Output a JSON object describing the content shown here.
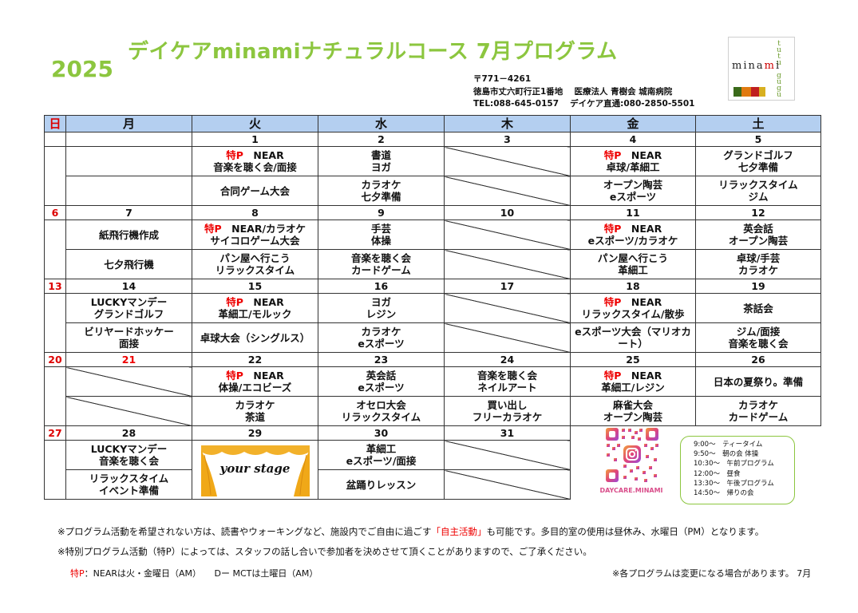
{
  "header": {
    "year": "2025",
    "title": "デイケアminamiナチュラルコース 7月プログラム",
    "postal": "〒771－4261",
    "address": "徳島市丈六町行正1番地　 医療法人 青樹会 城南病院",
    "tel": "TEL:088-645-0157　 デイケア直通:080-2850-5501"
  },
  "logo": {
    "vertical_top": [
      "t",
      "u",
      "t",
      "u"
    ],
    "word_a": "mina",
    "word_b": "m",
    "word_c": "i",
    "vertical_bottom": [
      "g",
      "u",
      "g",
      "u"
    ],
    "colors": [
      "#3a6a1a",
      "#e07a10",
      "#c02020",
      "#d8b020"
    ]
  },
  "weekdays": [
    "日",
    "月",
    "火",
    "水",
    "木",
    "金",
    "土"
  ],
  "weeks": [
    {
      "dates": [
        "",
        "",
        "1",
        "2",
        "3",
        "4",
        "5"
      ],
      "rows": [
        [
          {
            "sp": "",
            "t": [
              "",
              ""
            ]
          },
          {
            "sp": "特P",
            "t": [
              "　NEAR",
              "音楽を聴く会/面接"
            ]
          },
          {
            "sp": "",
            "t": [
              "書道",
              "ヨガ"
            ]
          },
          {
            "slash": true
          },
          {
            "sp": "特P",
            "t": [
              "　NEAR",
              "卓球/革細工"
            ]
          },
          {
            "sp": "",
            "t": [
              "グランドゴルフ",
              "七夕準備"
            ]
          }
        ],
        [
          {
            "sp": "",
            "t": [
              "",
              ""
            ]
          },
          {
            "sp": "",
            "t": [
              "合同ゲーム大会",
              ""
            ]
          },
          {
            "sp": "",
            "t": [
              "カラオケ",
              "七夕準備"
            ]
          },
          {
            "slash": true
          },
          {
            "sp": "",
            "t": [
              "オープン陶芸",
              "eスポーツ"
            ]
          },
          {
            "sp": "",
            "t": [
              "リラックスタイム",
              "ジム"
            ]
          }
        ]
      ]
    },
    {
      "dates": [
        "6",
        "7",
        "8",
        "9",
        "10",
        "11",
        "12"
      ],
      "rows": [
        [
          {
            "sp": "",
            "t": [
              "紙飛行機作成",
              ""
            ]
          },
          {
            "sp": "特P",
            "t": [
              "　NEAR/カラオケ",
              "サイコロゲーム大会"
            ]
          },
          {
            "sp": "",
            "t": [
              "手芸",
              "体操"
            ]
          },
          {
            "slash": true
          },
          {
            "sp": "特P",
            "t": [
              "　NEAR",
              "eスポーツ/カラオケ"
            ]
          },
          {
            "sp": "",
            "t": [
              "英会話",
              "オープン陶芸"
            ]
          }
        ],
        [
          {
            "sp": "",
            "t": [
              "七夕飛行機",
              ""
            ]
          },
          {
            "sp": "",
            "t": [
              "パン屋へ行こう",
              "リラックスタイム"
            ]
          },
          {
            "sp": "",
            "t": [
              "音楽を聴く会",
              "カードゲーム"
            ]
          },
          {
            "slash": true
          },
          {
            "sp": "",
            "t": [
              "パン屋へ行こう",
              "革細工"
            ]
          },
          {
            "sp": "",
            "t": [
              "卓球/手芸",
              "カラオケ"
            ]
          }
        ]
      ]
    },
    {
      "dates": [
        "13",
        "14",
        "15",
        "16",
        "17",
        "18",
        "19"
      ],
      "rows": [
        [
          {
            "sp": "",
            "t": [
              "LUCKYマンデー",
              "グランドゴルフ"
            ]
          },
          {
            "sp": "特P",
            "t": [
              "　NEAR",
              "革細工/モルック"
            ]
          },
          {
            "sp": "",
            "t": [
              "ヨガ",
              "レジン"
            ]
          },
          {
            "slash": true
          },
          {
            "sp": "特P",
            "t": [
              "　NEAR",
              "リラックスタイム/散歩"
            ]
          },
          {
            "sp": "",
            "t": [
              "茶話会",
              ""
            ]
          }
        ],
        [
          {
            "sp": "",
            "t": [
              "ビリヤードホッケー",
              "面接"
            ]
          },
          {
            "sp": "",
            "t": [
              "卓球大会（シングルス）",
              ""
            ]
          },
          {
            "sp": "",
            "t": [
              "カラオケ",
              "eスポーツ"
            ]
          },
          {
            "slash": true
          },
          {
            "sp": "",
            "small": true,
            "t": [
              "eスポーツ大会（マリオカート）",
              ""
            ]
          },
          {
            "sp": "",
            "t": [
              "ジム/面接",
              "音楽を聴く会"
            ]
          }
        ]
      ]
    },
    {
      "dates": [
        "20",
        "21",
        "22",
        "23",
        "24",
        "25",
        "26"
      ],
      "rows": [
        [
          {
            "slash": true
          },
          {
            "sp": "特P",
            "t": [
              "　NEAR",
              "体操/エコビーズ"
            ]
          },
          {
            "sp": "",
            "t": [
              "英会話",
              "eスポーツ"
            ]
          },
          {
            "sp": "",
            "t": [
              "音楽を聴く会",
              "ネイルアート"
            ]
          },
          {
            "sp": "特P",
            "t": [
              "　NEAR",
              "革細工/レジン"
            ]
          },
          {
            "sp": "",
            "t": [
              "日本の夏祭り。準備",
              ""
            ]
          }
        ],
        [
          {
            "slash": true
          },
          {
            "sp": "",
            "t": [
              "カラオケ",
              "茶道"
            ]
          },
          {
            "sp": "",
            "t": [
              "オセロ大会",
              "リラックスタイム"
            ]
          },
          {
            "sp": "",
            "t": [
              "買い出し",
              "フリーカラオケ"
            ]
          },
          {
            "sp": "",
            "t": [
              "麻雀大会",
              "オープン陶芸"
            ]
          },
          {
            "sp": "",
            "t": [
              "カラオケ",
              "カードゲーム"
            ]
          }
        ]
      ]
    }
  ],
  "last_week": {
    "dates": [
      "27",
      "28",
      "29",
      "30",
      "31"
    ],
    "mon": [
      [
        "LUCKYマンデー",
        "音楽を聴く会"
      ],
      [
        "リラックスタイム",
        "イベント準備"
      ]
    ],
    "tue_stage": "your stage",
    "wed": [
      [
        "革細工",
        "eスポーツ/面接"
      ],
      [
        "盆踊りレッスン",
        ""
      ]
    ],
    "qr_label": "DAYCARE.MINAMI"
  },
  "schedule": [
    "9:00～　ティータイム",
    "9:50～　朝の会 体操",
    "10:30～　午前プログラム",
    "12:00～　昼食",
    "13:30～　午後プログラム",
    "14:50～　帰りの会"
  ],
  "notes": {
    "line1_a": "※プログラム活動を希望されない方は、読書やウォーキングなど、施設内でご自由に過ごす",
    "line1_hi": "「自主活動」",
    "line1_b": "も可能です。多目的室の使用は昼休み、水曜日（PM）となります。",
    "line2": "※特別プログラム活動（特P）によっては、スタッフの話し合いで参加者を決めさせて頂くことがありますので、ご了承ください。",
    "foot_sp": "特P",
    "foot_left": "：NEARは火・金曜日（AM）　　Dー MCTは土曜日（AM）",
    "foot_right": "※各プログラムは変更になる場合があります。 7月"
  }
}
